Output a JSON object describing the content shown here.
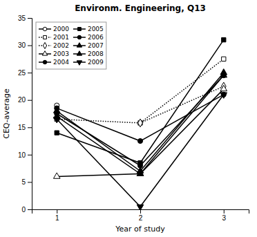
{
  "chart_data": {
    "type": "line",
    "title": "Environm. Engineering, Q13",
    "x_label": "Year of study",
    "y_label": "CEQ-average",
    "xlim": [
      0.7,
      3.3
    ],
    "xticks": [
      1,
      2,
      3
    ],
    "ylim": [
      0,
      35
    ],
    "yticks": [
      0,
      5,
      10,
      15,
      20,
      25,
      30,
      35
    ],
    "grid": false,
    "legend": "upper left",
    "series": [
      {
        "name": "2000",
        "color": "black",
        "line_style": "solid",
        "marker": "circle-open",
        "x": [
          1
        ],
        "values": [
          19
        ]
      },
      {
        "name": "2001",
        "color": "black",
        "line_style": "dotted",
        "marker": "square-open",
        "x": [
          1,
          2,
          3
        ],
        "values": [
          16.5,
          15.8,
          27.5
        ]
      },
      {
        "name": "2002",
        "color": "black",
        "line_style": "dotted",
        "marker": "diamond-open",
        "x": [
          2,
          3
        ],
        "values": [
          15.8,
          22.5
        ]
      },
      {
        "name": "2003",
        "color": "black",
        "line_style": "solid",
        "marker": "triangle-up-open",
        "x": [
          1,
          2,
          3
        ],
        "values": [
          6.0,
          6.5,
          22.0
        ]
      },
      {
        "name": "2004",
        "color": "black",
        "line_style": "solid",
        "marker": "circle",
        "x": [
          1,
          2,
          3
        ],
        "values": [
          18.5,
          12.5,
          21.0
        ]
      },
      {
        "name": "2005",
        "color": "black",
        "line_style": "solid",
        "marker": "square",
        "x": [
          1,
          2,
          3
        ],
        "values": [
          14.0,
          8.5,
          31.0
        ]
      },
      {
        "name": "2006",
        "color": "black",
        "line_style": "solid",
        "marker": "circle",
        "x": [
          1,
          2,
          3
        ],
        "values": [
          17.5,
          8.0,
          24.5
        ]
      },
      {
        "name": "2007",
        "color": "black",
        "line_style": "solid",
        "marker": "triangle-up",
        "x": [
          1,
          2,
          3
        ],
        "values": [
          18.0,
          7.0,
          25.0
        ]
      },
      {
        "name": "2008",
        "color": "black",
        "line_style": "solid",
        "marker": "triangle-up",
        "x": [
          1,
          2,
          3
        ],
        "values": [
          17.0,
          6.5,
          24.5
        ]
      },
      {
        "name": "2009",
        "color": "black",
        "line_style": "solid",
        "marker": "triangle-down",
        "x": [
          1,
          2,
          3
        ],
        "values": [
          16.5,
          0.5,
          21.0
        ]
      }
    ]
  }
}
